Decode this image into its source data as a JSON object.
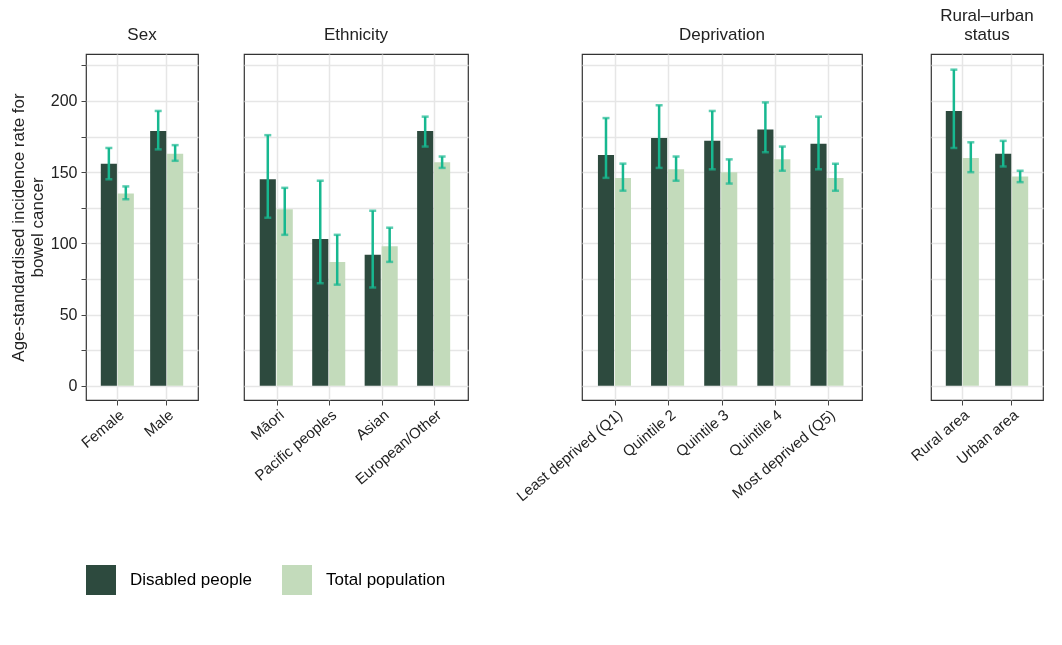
{
  "chart_data": [
    {
      "type": "bar",
      "title": "Sex",
      "ylabel": "Age-standardised incidence rate for bowel cancer",
      "categories": [
        "Female",
        "Male"
      ],
      "series": [
        {
          "name": "Disabled people",
          "color": "#2d4a3e",
          "values": [
            156,
            179
          ],
          "errors": [
            [
              145,
              167
            ],
            [
              166,
              193
            ]
          ]
        },
        {
          "name": "Total population",
          "color": "#c3dbbb",
          "values": [
            135,
            163
          ],
          "errors": [
            [
              131,
              140
            ],
            [
              158,
              169
            ]
          ]
        }
      ],
      "ylim": [
        -10,
        233
      ],
      "yticks": [
        0,
        {
          "value": 25,
          "label": null
        },
        50,
        {
          "value": 75,
          "label": null
        },
        100,
        {
          "value": 125,
          "label": null
        },
        150,
        {
          "value": 175,
          "label": null
        },
        200,
        {
          "value": 225,
          "label": null
        }
      ],
      "grid": true,
      "legend": "bottom"
    },
    {
      "type": "bar",
      "title": "Ethnicity",
      "categories": [
        "Māori",
        "Pacific peoples",
        "Asian",
        "European/Other"
      ],
      "series": [
        {
          "name": "Disabled people",
          "color": "#2d4a3e",
          "values": [
            145,
            103,
            92,
            179
          ],
          "errors": [
            [
              118,
              176
            ],
            [
              72,
              144
            ],
            [
              69,
              123
            ],
            [
              168,
              189
            ]
          ]
        },
        {
          "name": "Total population",
          "color": "#c3dbbb",
          "values": [
            124,
            87,
            98,
            157
          ],
          "errors": [
            [
              106,
              139
            ],
            [
              71,
              106
            ],
            [
              87,
              111
            ],
            [
              153,
              161
            ]
          ]
        }
      ],
      "ylim": [
        -10,
        233
      ],
      "yticks": [
        0,
        {
          "value": 25,
          "label": null
        },
        50,
        {
          "value": 75,
          "label": null
        },
        100,
        {
          "value": 125,
          "label": null
        },
        150,
        {
          "value": 175,
          "label": null
        },
        200,
        {
          "value": 225,
          "label": null
        }
      ],
      "grid": true,
      "tick_labels": "x",
      "legend": "bottom"
    },
    {
      "type": "bar",
      "title": "Deprivation",
      "categories": [
        "Least deprived (Q1)",
        "Quintile 2",
        "Quintile 3",
        "Quintile 4",
        "Most deprived (Q5)"
      ],
      "series": [
        {
          "name": "Disabled people",
          "color": "#2d4a3e",
          "values": [
            162,
            174,
            172,
            180,
            170
          ],
          "errors": [
            [
              146,
              188
            ],
            [
              153,
              197
            ],
            [
              152,
              193
            ],
            [
              164,
              199
            ],
            [
              152,
              189
            ]
          ]
        },
        {
          "name": "Total population",
          "color": "#c3dbbb",
          "values": [
            146,
            152,
            150,
            159,
            146
          ],
          "errors": [
            [
              137,
              156
            ],
            [
              144,
              161
            ],
            [
              142,
              159
            ],
            [
              151,
              168
            ],
            [
              137,
              156
            ]
          ]
        }
      ],
      "ylim": [
        -10,
        233
      ],
      "yticks": [
        0,
        {
          "value": 25,
          "label": null
        },
        50,
        {
          "value": 75,
          "label": null
        },
        100,
        {
          "value": 125,
          "label": null
        },
        150,
        {
          "value": 175,
          "label": null
        },
        200,
        {
          "value": 225,
          "label": null
        }
      ],
      "grid": true,
      "tick_labels": "x",
      "legend": "bottom"
    },
    {
      "type": "bar",
      "title": "Rural–urban status",
      "categories": [
        "Rural area",
        "Urban area"
      ],
      "series": [
        {
          "name": "Disabled people",
          "color": "#2d4a3e",
          "values": [
            193,
            163
          ],
          "errors": [
            [
              167,
              222
            ],
            [
              154,
              172
            ]
          ]
        },
        {
          "name": "Total population",
          "color": "#c3dbbb",
          "values": [
            160,
            147
          ],
          "errors": [
            [
              150,
              171
            ],
            [
              143,
              151
            ]
          ]
        }
      ],
      "ylim": [
        -10,
        233
      ],
      "yticks": [
        0,
        {
          "value": 25,
          "label": null
        },
        50,
        {
          "value": 75,
          "label": null
        },
        100,
        {
          "value": 125,
          "label": null
        },
        150,
        {
          "value": 175,
          "label": null
        },
        200,
        {
          "value": 225,
          "label": null
        }
      ],
      "grid": true,
      "tick_labels": "x",
      "legend": "bottom"
    }
  ]
}
